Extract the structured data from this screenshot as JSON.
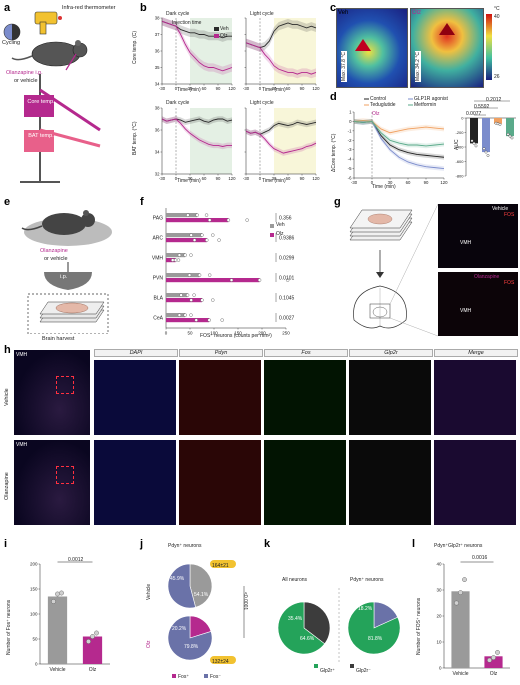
{
  "panels": {
    "a": {
      "label": "a",
      "infrared": "Infra-red thermometer",
      "cycling": "Cycling",
      "drug": "Olanzapine i.p.",
      "or_vehicle": "or vehicle",
      "core": "Core temp.",
      "bat": "BAT temp."
    },
    "b": {
      "label": "b",
      "dark_cycle": "Dark cycle",
      "light_cycle": "Light cycle",
      "injection_time": "Injection time",
      "legend_veh": "Veh",
      "legend_olz": "Olz",
      "ylabel_core": "Core temp. (C)",
      "ylabel_bat": "BAT temp. (°C)",
      "xlabel": "Time (min)"
    },
    "c": {
      "label": "c",
      "veh": "Veh",
      "olz": "Olz",
      "max_veh": "Max: 37.8 °C",
      "max_olz": "Max: 34.2 °C",
      "scale_unit": "°C",
      "scale_max": "40",
      "scale_min": "26"
    },
    "d": {
      "label": "d",
      "legend": [
        "Control",
        "GLP1R agonist",
        "Teduglutide",
        "Metformin"
      ],
      "olz": "Olz",
      "ylabel": "ΔCore temp. (°C)",
      "xlabel": "Time (min)",
      "auc_label": "AUC",
      "pvals": [
        "0.2012",
        "0.5592",
        "0.0077"
      ]
    },
    "e": {
      "label": "e",
      "drug": "Olanzapine",
      "or_vehicle": "or vehicle",
      "ip": "i.p.",
      "harvest": "Brain harvest"
    },
    "f": {
      "label": "f",
      "legend_veh": "Veh",
      "legend_olz": "Olz",
      "xlabel": "FOS⁺ neurons (counts per mm²)"
    },
    "g": {
      "label": "g",
      "vehicle": "Vehicle",
      "fos": "FOS",
      "olanzapine": "Olanzapine",
      "vmh": "VMH"
    },
    "h": {
      "label": "h",
      "vmh": "VMH",
      "headers": [
        "DAPI",
        "Pdyn",
        "Fos",
        "Glp2r",
        "Merge"
      ],
      "row_vehicle": "Vehicle",
      "row_olanzapine": "Olanzapine"
    },
    "i": {
      "label": "i",
      "ylabel": "Number of Fos⁺ neurons",
      "pval": "0.0012"
    },
    "j": {
      "label": "j",
      "title": "Pdyn⁺ neurons",
      "vehicle": "Vehicle",
      "olz": "Olz",
      "veh_pct_a": "45.9%",
      "veh_pct_b": "54.1%",
      "veh_count": "164±21",
      "olz_pct_a": "20.2%",
      "olz_pct_b": "79.8%",
      "olz_count": "132±24",
      "pval": "<0.0001",
      "leg_pos": "Fos⁺",
      "leg_neg": "Fos⁻"
    },
    "k": {
      "label": "k",
      "all": "All neurons",
      "pdyn": "Pdyn⁺ neurons",
      "all_a": "35.4%",
      "all_b": "64.6%",
      "pdyn_a": "18.2%",
      "pdyn_b": "81.8%",
      "leg_pos": "Glp2r⁺",
      "leg_neg": "Glp2r⁻"
    },
    "l": {
      "label": "l",
      "title": "Pdyn⁺Glp2r⁺ neurons",
      "ylabel": "Number of FOS⁺ neurons",
      "pval": "0.0016"
    }
  },
  "chart_data": [
    {
      "id": "b-core-dark",
      "type": "line",
      "x": [
        -30,
        -20,
        -10,
        0,
        10,
        20,
        30,
        40,
        50,
        60,
        70,
        80,
        90,
        100,
        110,
        120
      ],
      "series": [
        {
          "name": "Veh",
          "values": [
            37.8,
            37.7,
            37.6,
            37.5,
            37.3,
            37.2,
            37.1,
            37.1,
            37.0,
            37.0,
            36.9,
            36.9,
            36.9,
            36.8,
            36.9,
            36.9
          ]
        },
        {
          "name": "Olz",
          "values": [
            37.8,
            37.7,
            37.6,
            37.5,
            37.0,
            36.4,
            35.9,
            35.6,
            35.3,
            35.1,
            35.0,
            35.0,
            34.9,
            34.8,
            34.9,
            35.0
          ]
        }
      ],
      "xlim": [
        -30,
        120
      ],
      "ylim": [
        34,
        38
      ],
      "xticks": [
        -30,
        0,
        30,
        60,
        90,
        120
      ],
      "yticks": [
        34,
        35,
        36,
        37,
        38
      ]
    },
    {
      "id": "b-core-light",
      "type": "line",
      "x": [
        -30,
        -20,
        -10,
        0,
        10,
        20,
        30,
        40,
        50,
        60,
        70,
        80,
        90,
        100,
        110,
        120
      ],
      "series": [
        {
          "name": "Veh",
          "values": [
            36.5,
            36.4,
            36.3,
            36.2,
            36.3,
            36.6,
            37.2,
            37.5,
            37.6,
            37.7,
            37.6,
            37.6,
            37.5,
            37.4,
            37.5,
            37.4
          ]
        },
        {
          "name": "Olz",
          "values": [
            36.5,
            36.4,
            36.3,
            36.2,
            35.8,
            35.5,
            35.1,
            34.9,
            34.8,
            34.7,
            34.7,
            34.6,
            34.7,
            34.7,
            34.6,
            34.7
          ]
        }
      ],
      "xlim": [
        -30,
        120
      ],
      "ylim": [
        34,
        38
      ],
      "xticks": [
        -30,
        0,
        30,
        60,
        90,
        120
      ],
      "yticks": [
        34,
        35,
        36,
        37,
        38
      ]
    },
    {
      "id": "b-bat-dark",
      "type": "line",
      "x": [
        -30,
        -20,
        -10,
        0,
        10,
        20,
        30,
        40,
        50,
        60,
        70,
        80,
        90,
        100,
        110,
        120
      ],
      "series": [
        {
          "name": "Veh",
          "values": [
            37.0,
            36.8,
            36.9,
            37.0,
            36.9,
            36.7,
            36.8,
            36.9,
            37.0,
            36.8,
            36.7,
            36.9,
            37.0,
            37.0,
            36.8,
            36.9
          ]
        },
        {
          "name": "Olz",
          "values": [
            37.0,
            36.8,
            36.9,
            37.0,
            36.6,
            36.1,
            35.7,
            35.4,
            35.1,
            34.9,
            34.7,
            34.6,
            34.6,
            34.5,
            34.6,
            34.6
          ]
        }
      ],
      "xlim": [
        -30,
        120
      ],
      "ylim": [
        32,
        38
      ],
      "xticks": [
        -30,
        0,
        30,
        60,
        90,
        120
      ],
      "yticks": [
        32,
        34,
        36,
        38
      ]
    },
    {
      "id": "b-bat-light",
      "type": "line",
      "x": [
        -30,
        -20,
        -10,
        0,
        10,
        20,
        30,
        40,
        50,
        60,
        70,
        80,
        90,
        100,
        110,
        120
      ],
      "series": [
        {
          "name": "Veh",
          "values": [
            35.9,
            35.7,
            35.8,
            35.6,
            35.8,
            36.0,
            36.4,
            36.6,
            36.5,
            36.4,
            36.5,
            36.7,
            36.6,
            36.5,
            36.6,
            36.7
          ]
        },
        {
          "name": "Olz",
          "values": [
            35.9,
            35.7,
            35.8,
            35.6,
            35.2,
            34.7,
            34.3,
            34.1,
            33.9,
            34.0,
            34.1,
            34.2,
            34.3,
            34.5,
            34.6,
            34.8
          ]
        }
      ],
      "xlim": [
        -30,
        120
      ],
      "ylim": [
        32,
        38
      ],
      "xticks": [
        -30,
        0,
        30,
        60,
        90,
        120
      ],
      "yticks": [
        32,
        34,
        36,
        38
      ]
    },
    {
      "id": "d-line",
      "type": "line",
      "x": [
        -30,
        -15,
        0,
        15,
        30,
        45,
        60,
        75,
        90,
        105,
        120
      ],
      "series": [
        {
          "name": "Control",
          "values": [
            0,
            -0.1,
            0,
            -1.5,
            -2.5,
            -3.0,
            -3.3,
            -3.5,
            -3.6,
            -3.7,
            -3.8
          ]
        },
        {
          "name": "GLP1R agonist",
          "values": [
            0,
            -0.1,
            0,
            -1.8,
            -3.0,
            -3.8,
            -4.3,
            -4.6,
            -4.8,
            -4.9,
            -5.0
          ]
        },
        {
          "name": "Teduglutide",
          "values": [
            0,
            0.1,
            0,
            -0.8,
            -1.2,
            -1.0,
            -0.8,
            -0.7,
            -0.6,
            -0.7,
            -0.8
          ]
        },
        {
          "name": "Metformin",
          "values": [
            0,
            -0.1,
            0,
            -1.2,
            -2.0,
            -2.3,
            -2.5,
            -2.5,
            -2.6,
            -2.5,
            -2.4
          ]
        }
      ],
      "xlim": [
        -30,
        120
      ],
      "ylim": [
        -6,
        1
      ],
      "xticks": [
        -30,
        0,
        30,
        60,
        90,
        120
      ],
      "yticks": [
        -6,
        -5,
        -4,
        -3,
        -2,
        -1,
        0,
        1
      ]
    },
    {
      "id": "d-auc",
      "type": "bar",
      "categories": [
        "Control",
        "GLP1R agonist",
        "Teduglutide",
        "Metformin"
      ],
      "values": [
        -350,
        -470,
        -80,
        -250
      ],
      "ylim": [
        -800,
        0
      ],
      "yticks": [
        0,
        -200,
        -400,
        -600,
        -800
      ]
    },
    {
      "id": "f",
      "type": "bar",
      "orientation": "horizontal",
      "categories": [
        "PAG",
        "ARC",
        "VMH",
        "PVN",
        "BLA",
        "CeA"
      ],
      "series": [
        {
          "name": "Veh",
          "values": [
            65,
            75,
            40,
            70,
            45,
            40
          ]
        },
        {
          "name": "Olz",
          "values": [
            130,
            85,
            20,
            195,
            75,
            90
          ]
        }
      ],
      "pvals": [
        "0.356",
        "0.9386",
        "0.0299",
        "0.0101",
        "0.1045",
        "0.0027"
      ],
      "xlim": [
        0,
        250
      ],
      "xticks": [
        0,
        50,
        100,
        150,
        200,
        250
      ]
    },
    {
      "id": "i",
      "type": "bar",
      "categories": [
        "Vehicle",
        "Olz"
      ],
      "values": [
        135,
        55
      ],
      "points": [
        [
          125,
          140,
          142
        ],
        [
          45,
          55,
          62
        ]
      ],
      "ylim": [
        0,
        200
      ],
      "yticks": [
        0,
        50,
        100,
        150,
        200
      ]
    },
    {
      "id": "l",
      "type": "bar",
      "categories": [
        "Vehicle",
        "Olz"
      ],
      "values": [
        29.5,
        4.5
      ],
      "points": [
        [
          25,
          29,
          34
        ],
        [
          3,
          4,
          6
        ]
      ],
      "ylim": [
        0,
        40
      ],
      "yticks": [
        0,
        10,
        20,
        30,
        40
      ]
    },
    {
      "id": "j-veh",
      "type": "pie",
      "labels": [
        "Fos⁺",
        "Fos⁻"
      ],
      "values": [
        45.9,
        54.1
      ]
    },
    {
      "id": "j-olz",
      "type": "pie",
      "labels": [
        "Fos⁺",
        "Fos⁻"
      ],
      "values": [
        20.2,
        79.8
      ]
    },
    {
      "id": "k-all",
      "type": "pie",
      "labels": [
        "Glp2r⁻",
        "Glp2r⁺"
      ],
      "values": [
        35.4,
        64.6
      ]
    },
    {
      "id": "k-pdyn",
      "type": "pie",
      "labels": [
        "Glp2r⁻",
        "Glp2r⁺"
      ],
      "values": [
        18.2,
        81.8
      ]
    }
  ],
  "colors": {
    "veh": "#2b2b2b",
    "olz": "#b5298e",
    "dark_shade": "#e4f0e4",
    "light_shade": "#f8f6d9",
    "control": "#222222",
    "glp1": "#7b8ccc",
    "tedu": "#f0a060",
    "metformin": "#5aaa8a",
    "grey_bar": "#9a9a9a",
    "green": "#24a35a",
    "dark_grey": "#3c3c3c",
    "blue_grey": "#6a72a8",
    "pink": "#b5298e",
    "gold": "#f2c230"
  }
}
